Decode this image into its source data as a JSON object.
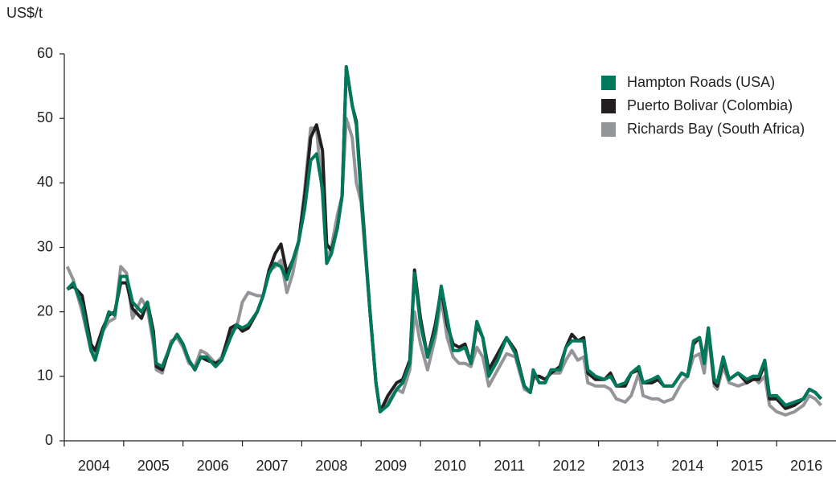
{
  "chart_data": {
    "type": "line",
    "y_label": "US$/t",
    "legend": "upper right",
    "x": [
      2004.05,
      2004.15,
      2004.3,
      2004.45,
      2004.52,
      2004.65,
      2004.75,
      2004.85,
      2004.95,
      2005.05,
      2005.15,
      2005.3,
      2005.4,
      2005.5,
      2005.55,
      2005.65,
      2005.8,
      2005.9,
      2006.0,
      2006.1,
      2006.2,
      2006.3,
      2006.4,
      2006.55,
      2006.65,
      2006.8,
      2006.9,
      2007.0,
      2007.1,
      2007.25,
      2007.35,
      2007.45,
      2007.55,
      2007.65,
      2007.75,
      2007.85,
      2007.95,
      2008.05,
      2008.15,
      2008.25,
      2008.35,
      2008.42,
      2008.5,
      2008.6,
      2008.68,
      2008.75,
      2008.85,
      2008.92,
      2009.0,
      2009.15,
      2009.25,
      2009.32,
      2009.45,
      2009.6,
      2009.7,
      2009.82,
      2009.9,
      2010.0,
      2010.12,
      2010.25,
      2010.35,
      2010.45,
      2010.55,
      2010.65,
      2010.75,
      2010.85,
      2010.95,
      2011.05,
      2011.15,
      2011.3,
      2011.45,
      2011.6,
      2011.75,
      2011.85,
      2011.9,
      2012.0,
      2012.1,
      2012.2,
      2012.35,
      2012.45,
      2012.55,
      2012.65,
      2012.75,
      2012.82,
      2012.95,
      2013.1,
      2013.2,
      2013.3,
      2013.45,
      2013.55,
      2013.68,
      2013.75,
      2013.9,
      2014.0,
      2014.1,
      2014.25,
      2014.4,
      2014.5,
      2014.6,
      2014.7,
      2014.78,
      2014.85,
      2014.95,
      2015.0,
      2015.1,
      2015.2,
      2015.35,
      2015.5,
      2015.6,
      2015.7,
      2015.8,
      2015.88,
      2016.0,
      2016.15,
      2016.3,
      2016.45,
      2016.55,
      2016.65,
      2016.75
    ],
    "series": [
      {
        "name": "Richards Bay (South Africa)",
        "color": "#939598",
        "values": [
          27,
          25,
          20,
          14,
          13.5,
          17,
          18.5,
          19,
          27,
          26,
          19,
          22,
          20.5,
          15,
          11,
          10.5,
          15.5,
          16,
          14.5,
          12,
          11.5,
          14,
          13.5,
          12,
          13,
          17,
          17.5,
          21.5,
          23,
          22.5,
          22.5,
          26.5,
          27,
          28,
          23,
          26,
          31,
          39,
          48.5,
          48.5,
          38,
          28,
          30,
          35,
          38,
          50,
          47,
          40,
          37,
          20,
          9,
          4.5,
          6,
          8,
          7.5,
          11,
          20,
          15,
          11,
          16,
          22,
          16,
          13,
          12,
          12,
          11.5,
          14.5,
          13,
          8.5,
          11,
          13.5,
          13,
          8,
          7.5,
          9.5,
          10,
          9.5,
          10.5,
          10.5,
          12.5,
          14,
          12.5,
          13,
          9,
          8.5,
          8.5,
          8,
          6.5,
          6,
          7,
          10.5,
          7,
          6.5,
          6.5,
          6,
          6.5,
          9,
          10,
          13,
          13.5,
          10.5,
          16.5,
          8.5,
          8,
          11.5,
          9,
          8.5,
          9,
          10,
          9,
          10,
          5.5,
          4.5,
          4,
          4.5,
          5.5,
          7,
          6.5,
          5.5
        ]
      },
      {
        "name": "Puerto Bolivar (Colombia)",
        "color": "#231f20",
        "values": [
          23.5,
          24,
          22.5,
          15,
          14,
          17.5,
          19.5,
          20,
          24.5,
          24.5,
          20.5,
          19,
          21.5,
          17,
          11.5,
          11,
          15,
          16.5,
          15,
          12.5,
          11,
          13,
          12.5,
          12,
          12.5,
          17.5,
          18,
          17,
          17.5,
          20,
          22.5,
          26.5,
          29,
          30.5,
          26,
          28,
          31,
          38,
          47,
          49,
          45,
          30.5,
          29.5,
          33,
          38,
          58,
          52,
          49.5,
          39,
          20,
          9,
          4.5,
          7,
          9,
          9.5,
          12.5,
          26.5,
          19,
          13,
          18,
          23.5,
          18,
          15,
          14.5,
          15,
          12,
          18,
          16,
          11,
          13.5,
          16,
          14,
          8.5,
          7.5,
          10,
          10,
          9.5,
          10.5,
          11.5,
          14.5,
          16.5,
          15.5,
          16,
          10.5,
          9.5,
          9.5,
          10.5,
          8.5,
          8.5,
          10.5,
          11,
          9,
          9,
          9.5,
          8.5,
          8.5,
          10.5,
          10,
          15,
          16,
          12.5,
          17.5,
          9,
          8.5,
          12.5,
          9.5,
          10.5,
          9,
          9.5,
          9.5,
          12,
          6.5,
          6.5,
          5,
          5.5,
          6.5,
          8,
          7.5,
          6.5
        ]
      },
      {
        "name": "Hampton Roads (USA)",
        "color": "#00785a",
        "values": [
          23.5,
          24.5,
          21,
          14,
          12.5,
          17,
          20,
          19.5,
          25.5,
          25.5,
          21.5,
          20,
          21.5,
          16,
          12,
          11.5,
          15,
          16.5,
          15,
          12.5,
          11,
          13,
          13,
          11.5,
          12.5,
          16,
          18,
          17.5,
          18,
          20,
          22.5,
          26,
          27.5,
          27,
          25,
          28,
          31,
          36,
          43.5,
          44.5,
          39,
          27.5,
          29,
          33,
          38,
          58,
          52,
          49,
          38,
          20,
          9,
          4.5,
          5.5,
          8,
          9,
          12,
          26,
          18,
          13,
          17,
          24,
          19,
          14,
          14,
          14.5,
          12,
          18.5,
          16,
          10,
          12.5,
          16,
          13.5,
          8.5,
          7.5,
          11,
          9,
          9,
          11,
          11,
          14.5,
          15.5,
          15.5,
          15.5,
          11,
          10,
          9.5,
          10,
          8.5,
          9,
          10.5,
          11.5,
          9,
          9.5,
          10,
          8.5,
          8.5,
          10.5,
          10,
          15.5,
          16,
          12,
          17.5,
          9.5,
          9,
          13,
          9.5,
          10.5,
          9.5,
          10,
          10,
          12.5,
          7,
          7,
          5.5,
          6,
          6.5,
          8,
          7.5,
          6.5
        ]
      }
    ],
    "xlim": [
      2004,
      2017
    ],
    "xticks": [
      2004,
      2005,
      2006,
      2007,
      2008,
      2009,
      2010,
      2011,
      2012,
      2013,
      2014,
      2015,
      2016
    ],
    "ylim": [
      0,
      60
    ],
    "yticks": [
      0,
      10,
      20,
      30,
      40,
      50,
      60
    ]
  }
}
